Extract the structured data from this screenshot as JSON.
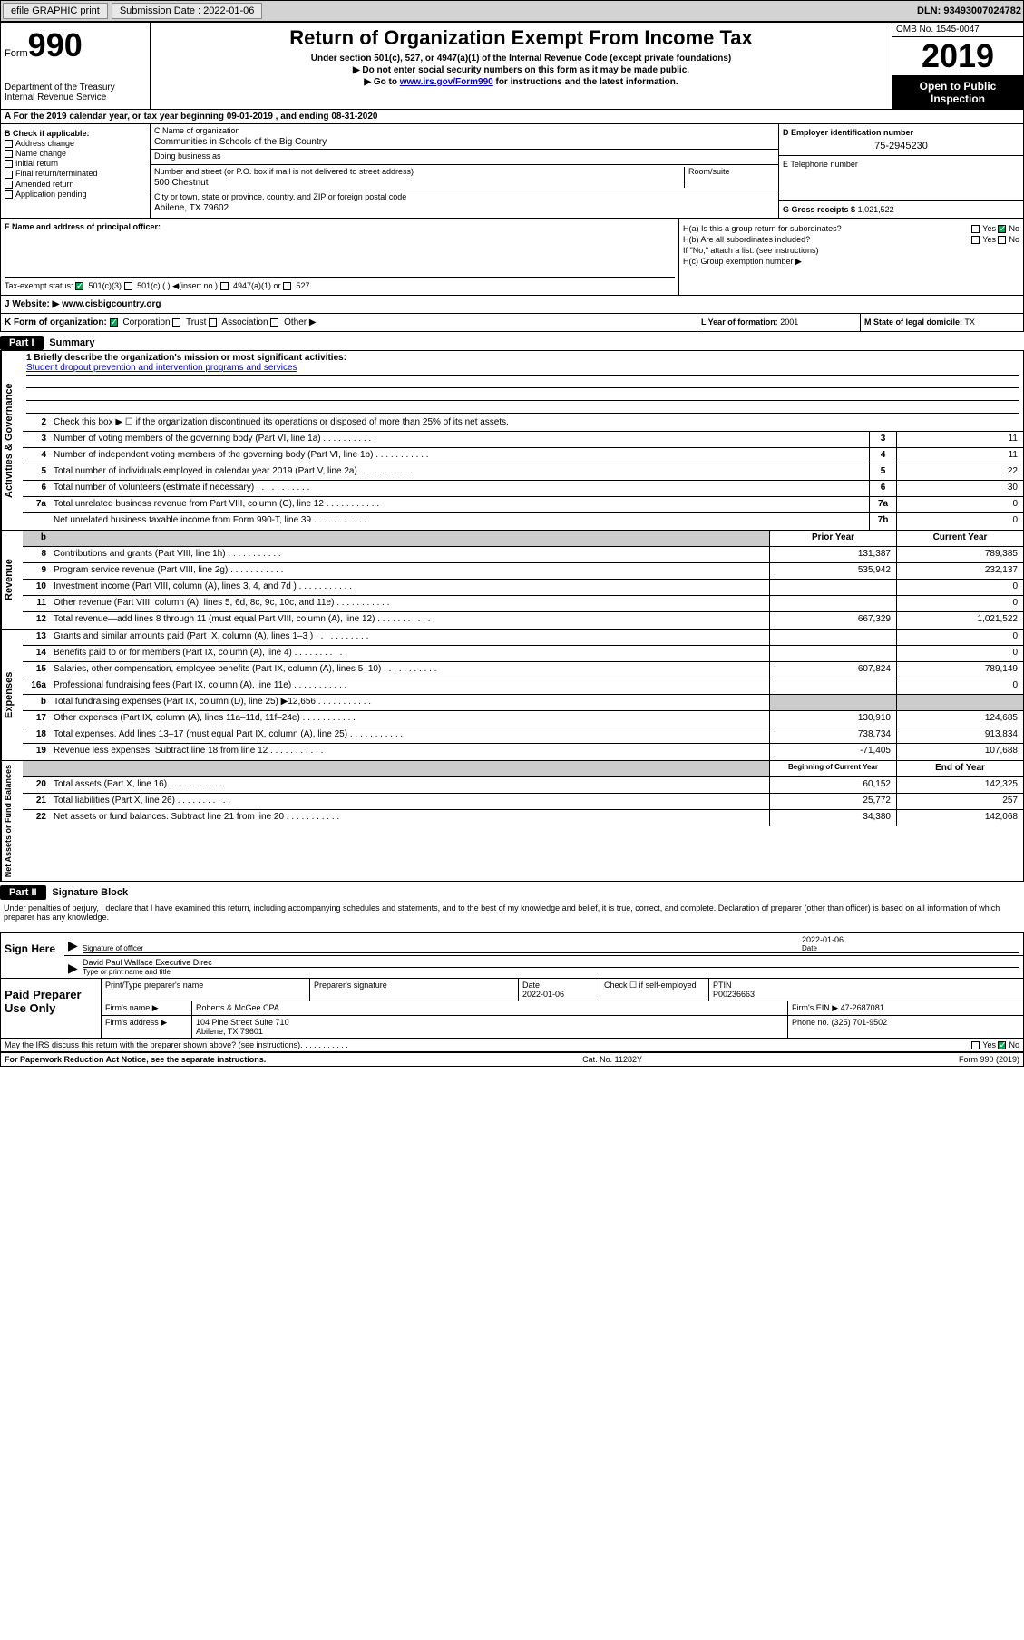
{
  "topbar": {
    "efile_label": "efile GRAPHIC print",
    "submission_label": "Submission Date : 2022-01-06",
    "dln": "DLN: 93493007024782"
  },
  "header": {
    "form_label": "Form",
    "form_number": "990",
    "dept": "Department of the Treasury\nInternal Revenue Service",
    "title": "Return of Organization Exempt From Income Tax",
    "subtitle1": "Under section 501(c), 527, or 4947(a)(1) of the Internal Revenue Code (except private foundations)",
    "subtitle2": "▶ Do not enter social security numbers on this form as it may be made public.",
    "subtitle3a": "▶ Go to ",
    "subtitle3_link": "www.irs.gov/Form990",
    "subtitle3b": " for instructions and the latest information.",
    "omb": "OMB No. 1545-0047",
    "year": "2019",
    "open_public": "Open to Public Inspection"
  },
  "row_a": "A   For the 2019 calendar year, or tax year beginning 09-01-2019    , and ending 08-31-2020",
  "col_b": {
    "header": "B Check if applicable:",
    "items": [
      "Address change",
      "Name change",
      "Initial return",
      "Final return/terminated",
      "Amended return",
      "Application pending"
    ]
  },
  "col_c": {
    "name_label": "C Name of organization",
    "name": "Communities in Schools of the Big Country",
    "dba_label": "Doing business as",
    "dba": "",
    "street_label": "Number and street (or P.O. box if mail is not delivered to street address)",
    "room_label": "Room/suite",
    "street": "500 Chestnut",
    "city_label": "City or town, state or province, country, and ZIP or foreign postal code",
    "city": "Abilene, TX  79602"
  },
  "col_d": {
    "ein_label": "D Employer identification number",
    "ein": "75-2945230",
    "tel_label": "E Telephone number",
    "tel": "",
    "gross_label": "G Gross receipts $",
    "gross": "1,021,522"
  },
  "col_f": {
    "label": "F  Name and address of principal officer:",
    "tax_exempt_label": "Tax-exempt status:",
    "opts": [
      "501(c)(3)",
      "501(c) (  ) ◀(insert no.)",
      "4947(a)(1) or",
      "527"
    ]
  },
  "col_h": {
    "ha_label": "H(a)  Is this a group return for subordinates?",
    "hb_label": "H(b)  Are all subordinates included?",
    "hb_note": "If \"No,\" attach a list. (see instructions)",
    "hc_label": "H(c)  Group exemption number ▶",
    "yes": "Yes",
    "no": "No"
  },
  "row_j": {
    "label": "J   Website: ▶",
    "value": "  www.cisbigcountry.org"
  },
  "row_k": {
    "left": "K Form of organization:",
    "opts": [
      "Corporation",
      "Trust",
      "Association",
      "Other ▶"
    ],
    "mid_label": "L Year of formation:",
    "mid_val": "2001",
    "right_label": "M State of legal domicile:",
    "right_val": "TX"
  },
  "part1": {
    "hdr": "Part I",
    "title": "Summary",
    "q1_label": "1  Briefly describe the organization's mission or most significant activities:",
    "q1_val": "Student dropout prevention and intervention programs and services",
    "q2": "Check this box ▶ ☐  if the organization discontinued its operations or disposed of more than 25% of its net assets.",
    "governance": {
      "label": "Activities & Governance",
      "rows": [
        {
          "n": "3",
          "t": "Number of voting members of the governing body (Part VI, line 1a)",
          "box": "3",
          "v": "11"
        },
        {
          "n": "4",
          "t": "Number of independent voting members of the governing body (Part VI, line 1b)",
          "box": "4",
          "v": "11"
        },
        {
          "n": "5",
          "t": "Total number of individuals employed in calendar year 2019 (Part V, line 2a)",
          "box": "5",
          "v": "22"
        },
        {
          "n": "6",
          "t": "Total number of volunteers (estimate if necessary)",
          "box": "6",
          "v": "30"
        },
        {
          "n": "7a",
          "t": "Total unrelated business revenue from Part VIII, column (C), line 12",
          "box": "7a",
          "v": "0"
        },
        {
          "n": "",
          "t": "Net unrelated business taxable income from Form 990-T, line 39",
          "box": "7b",
          "v": "0"
        }
      ]
    },
    "two_col_hdr": {
      "prior": "Prior Year",
      "current": "Current Year"
    },
    "revenue": {
      "label": "Revenue",
      "rows": [
        {
          "n": "8",
          "t": "Contributions and grants (Part VIII, line 1h)",
          "p": "131,387",
          "c": "789,385"
        },
        {
          "n": "9",
          "t": "Program service revenue (Part VIII, line 2g)",
          "p": "535,942",
          "c": "232,137"
        },
        {
          "n": "10",
          "t": "Investment income (Part VIII, column (A), lines 3, 4, and 7d )",
          "p": "",
          "c": "0"
        },
        {
          "n": "11",
          "t": "Other revenue (Part VIII, column (A), lines 5, 6d, 8c, 9c, 10c, and 11e)",
          "p": "",
          "c": "0"
        },
        {
          "n": "12",
          "t": "Total revenue—add lines 8 through 11 (must equal Part VIII, column (A), line 12)",
          "p": "667,329",
          "c": "1,021,522"
        }
      ]
    },
    "expenses": {
      "label": "Expenses",
      "rows": [
        {
          "n": "13",
          "t": "Grants and similar amounts paid (Part IX, column (A), lines 1–3 )",
          "p": "",
          "c": "0"
        },
        {
          "n": "14",
          "t": "Benefits paid to or for members (Part IX, column (A), line 4)",
          "p": "",
          "c": "0"
        },
        {
          "n": "15",
          "t": "Salaries, other compensation, employee benefits (Part IX, column (A), lines 5–10)",
          "p": "607,824",
          "c": "789,149"
        },
        {
          "n": "16a",
          "t": "Professional fundraising fees (Part IX, column (A), line 11e)",
          "p": "",
          "c": "0"
        },
        {
          "n": "b",
          "t": "Total fundraising expenses (Part IX, column (D), line 25) ▶12,656",
          "p": "GRAY",
          "c": "GRAY"
        },
        {
          "n": "17",
          "t": "Other expenses (Part IX, column (A), lines 11a–11d, 11f–24e)",
          "p": "130,910",
          "c": "124,685"
        },
        {
          "n": "18",
          "t": "Total expenses. Add lines 13–17 (must equal Part IX, column (A), line 25)",
          "p": "738,734",
          "c": "913,834"
        },
        {
          "n": "19",
          "t": "Revenue less expenses. Subtract line 18 from line 12",
          "p": "-71,405",
          "c": "107,688"
        }
      ]
    },
    "net_hdr": {
      "begin": "Beginning of Current Year",
      "end": "End of Year"
    },
    "net": {
      "label": "Net Assets or Fund Balances",
      "rows": [
        {
          "n": "20",
          "t": "Total assets (Part X, line 16)",
          "p": "60,152",
          "c": "142,325"
        },
        {
          "n": "21",
          "t": "Total liabilities (Part X, line 26)",
          "p": "25,772",
          "c": "257"
        },
        {
          "n": "22",
          "t": "Net assets or fund balances. Subtract line 21 from line 20",
          "p": "34,380",
          "c": "142,068"
        }
      ]
    }
  },
  "part2": {
    "hdr": "Part II",
    "title": "Signature Block",
    "declaration": "Under penalties of perjury, I declare that I have examined this return, including accompanying schedules and statements, and to the best of my knowledge and belief, it is true, correct, and complete. Declaration of preparer (other than officer) is based on all information of which preparer has any knowledge."
  },
  "sign": {
    "label": "Sign Here",
    "sig_officer": "Signature of officer",
    "date_label": "Date",
    "date": "2022-01-06",
    "name": "David Paul Wallace  Executive Direc",
    "type_label": "Type or print name and title"
  },
  "prep": {
    "label": "Paid Preparer Use Only",
    "print_label": "Print/Type preparer's name",
    "sig_label": "Preparer's signature",
    "date_label": "Date",
    "date": "2022-01-06",
    "self_emp": "Check ☐ if self-employed",
    "ptin_label": "PTIN",
    "ptin": "P00236663",
    "firm_name_label": "Firm's name    ▶",
    "firm_name": "Roberts & McGee CPA",
    "firm_ein_label": "Firm's EIN ▶",
    "firm_ein": "47-2687081",
    "firm_addr_label": "Firm's address ▶",
    "firm_addr": "104 Pine Street Suite 710",
    "firm_city": "Abilene, TX  79601",
    "phone_label": "Phone no.",
    "phone": "(325) 701-9502"
  },
  "footer": {
    "discuss": "May the IRS discuss this return with the preparer shown above? (see instructions)",
    "yes": "Yes",
    "no": "No",
    "paperwork": "For Paperwork Reduction Act Notice, see the separate instructions.",
    "cat": "Cat. No. 11282Y",
    "form": "Form 990 (2019)"
  }
}
